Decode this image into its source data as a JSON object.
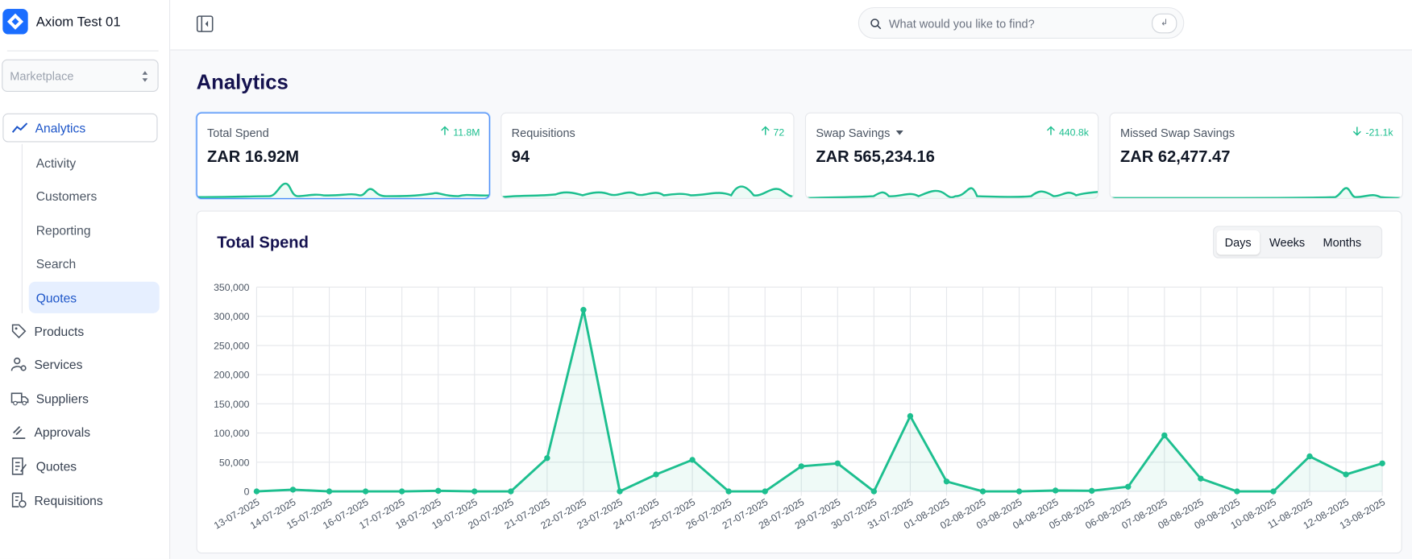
{
  "sidebar": {
    "brand": "Axiom Test 01",
    "selector": "Marketplace",
    "nav": [
      {
        "label": "Analytics",
        "children": [
          "Activity",
          "Customers",
          "Reporting",
          "Search",
          "Quotes"
        ]
      },
      {
        "label": "Products"
      },
      {
        "label": "Services"
      },
      {
        "label": "Suppliers"
      },
      {
        "label": "Approvals"
      },
      {
        "label": "Quotes"
      },
      {
        "label": "Requisitions"
      }
    ]
  },
  "header": {
    "search_placeholder": "What would you like to find?"
  },
  "page": {
    "title": "Analytics"
  },
  "cards": [
    {
      "title": "Total Spend",
      "change": "11.8M",
      "direction": "up",
      "value": "ZAR 16.92M"
    },
    {
      "title": "Requisitions",
      "change": "72",
      "direction": "up",
      "value": "94"
    },
    {
      "title": "Swap Savings",
      "change": "440.8k",
      "direction": "up",
      "value": "ZAR 565,234.16"
    },
    {
      "title": "Missed Swap Savings",
      "change": "-21.1k",
      "direction": "down",
      "value": "ZAR 62,477.47"
    }
  ],
  "chart_data": {
    "type": "line",
    "title": "Total Spend",
    "periods": [
      "Days",
      "Weeks",
      "Months"
    ],
    "categories": [
      "13-07-2025",
      "14-07-2025",
      "15-07-2025",
      "16-07-2025",
      "17-07-2025",
      "18-07-2025",
      "19-07-2025",
      "20-07-2025",
      "21-07-2025",
      "22-07-2025",
      "23-07-2025",
      "24-07-2025",
      "25-07-2025",
      "26-07-2025",
      "27-07-2025",
      "28-07-2025",
      "29-07-2025",
      "30-07-2025",
      "31-07-2025",
      "01-08-2025",
      "02-08-2025",
      "03-08-2025",
      "04-08-2025",
      "05-08-2025",
      "06-08-2025",
      "07-08-2025",
      "08-08-2025",
      "09-08-2025",
      "10-08-2025",
      "11-08-2025",
      "12-08-2025",
      "13-08-2025"
    ],
    "values": [
      0,
      3000,
      0,
      0,
      0,
      1000,
      0,
      0,
      57000,
      311000,
      0,
      29000,
      54000,
      0,
      0,
      43000,
      48000,
      0,
      129000,
      17000,
      0,
      0,
      1500,
      1000,
      8000,
      96000,
      22000,
      0,
      0,
      60000,
      29000,
      48000
    ],
    "color": "#1dbf8f",
    "ylim": [
      0,
      350000
    ],
    "yticks": [
      0,
      {
        "value": 50000,
        "label": "50,000"
      },
      {
        "value": 100000,
        "label": "100,000"
      },
      {
        "value": 150000,
        "label": "150,000"
      },
      {
        "value": 200000,
        "label": "200,000"
      },
      {
        "value": 250000,
        "label": "250,000"
      },
      {
        "value": 300000,
        "label": "300,000"
      },
      {
        "value": 350000,
        "label": "350,000"
      }
    ],
    "grid": true
  }
}
